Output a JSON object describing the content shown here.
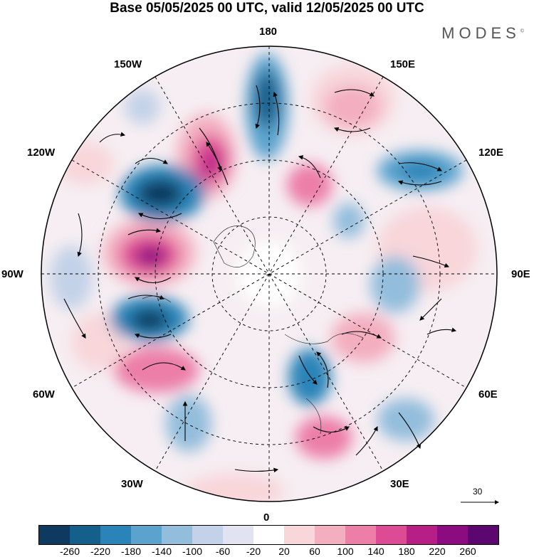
{
  "title": "Base 05/05/2025 00 UTC, valid 12/05/2025 00 UTC",
  "logo": "MODES",
  "logo_mark": "©",
  "longitude_labels": {
    "top": "180",
    "bottom": "0",
    "left": "90W",
    "right": "90E",
    "upper_left_1": "150W",
    "upper_left_2": "120W",
    "upper_right_1": "150E",
    "upper_right_2": "120E",
    "lower_left_1": "60W",
    "lower_left_2": "30W",
    "lower_right_1": "60E",
    "lower_right_2": "30E"
  },
  "vector_scale_label": "30",
  "colorbar": {
    "colors": [
      "#0d3a5e",
      "#155f8c",
      "#2a84b8",
      "#5aa3cd",
      "#93bddc",
      "#c3d2e8",
      "#e1e3f2",
      "#ffffff",
      "#f8d6da",
      "#f3aec0",
      "#ec7ea7",
      "#dd4b94",
      "#b81f86",
      "#8c0b80",
      "#5c066f"
    ],
    "labels": [
      "-260",
      "-220",
      "-180",
      "-140",
      "-100",
      "-60",
      "-20",
      "20",
      "60",
      "100",
      "140",
      "180",
      "220",
      "260"
    ]
  },
  "colors": {
    "accent_positive": "#dd4b94",
    "accent_negative": "#2a84b8"
  }
}
